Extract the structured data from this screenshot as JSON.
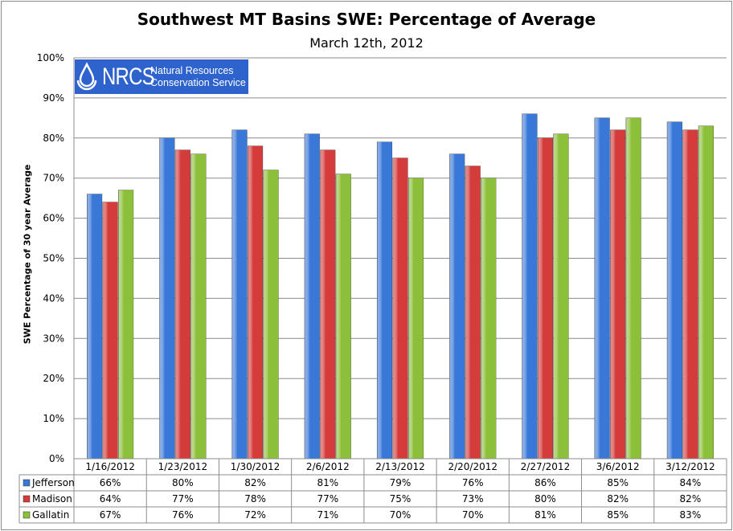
{
  "chart_data": {
    "type": "bar",
    "title": "Southwest MT Basins SWE: Percentage of Average",
    "subtitle": "March 12th, 2012",
    "xlabel": "",
    "ylabel": "SWE Percentage of 30 year Average",
    "ylim": [
      0,
      100
    ],
    "yticks": [
      "0%",
      "10%",
      "20%",
      "30%",
      "40%",
      "50%",
      "60%",
      "70%",
      "80%",
      "90%",
      "100%"
    ],
    "grid": true,
    "legend": "data-table",
    "categories": [
      "1/16/2012",
      "1/23/2012",
      "1/30/2012",
      "2/6/2012",
      "2/13/2012",
      "2/20/2012",
      "2/27/2012",
      "3/6/2012",
      "3/12/2012"
    ],
    "series": [
      {
        "name": "Jefferson",
        "color": "#3a78d8",
        "values": [
          66,
          80,
          82,
          81,
          79,
          76,
          86,
          85,
          84
        ],
        "labels": [
          "66%",
          "80%",
          "82%",
          "81%",
          "79%",
          "76%",
          "86%",
          "85%",
          "84%"
        ]
      },
      {
        "name": "Madison",
        "color": "#d43b3b",
        "values": [
          64,
          77,
          78,
          77,
          75,
          73,
          80,
          82,
          82
        ],
        "labels": [
          "64%",
          "77%",
          "78%",
          "77%",
          "75%",
          "73%",
          "80%",
          "82%",
          "82%"
        ]
      },
      {
        "name": "Gallatin",
        "color": "#8cbf3a",
        "values": [
          67,
          76,
          72,
          71,
          70,
          70,
          81,
          85,
          83
        ],
        "labels": [
          "67%",
          "76%",
          "72%",
          "71%",
          "70%",
          "70%",
          "81%",
          "85%",
          "83%"
        ]
      }
    ]
  },
  "logo": {
    "abbr": "NRCS",
    "line1": "Natural Resources",
    "line2": "Conservation Service"
  }
}
